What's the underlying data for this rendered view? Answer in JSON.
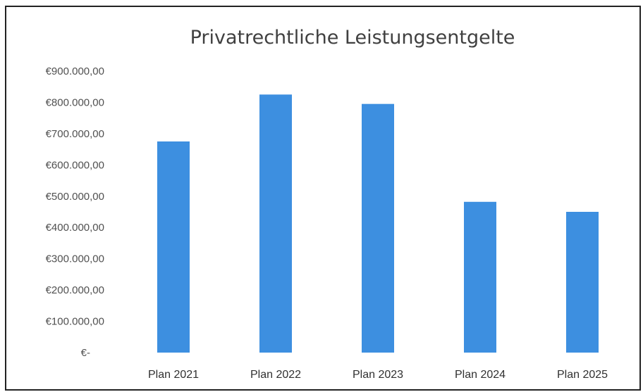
{
  "chart_data": {
    "type": "bar",
    "title": "Privatrechtliche Leistungsentgelte",
    "categories": [
      "Plan 2021",
      "Plan 2022",
      "Plan 2023",
      "Plan 2024",
      "Plan 2025"
    ],
    "values": [
      675000,
      825000,
      795000,
      482000,
      450000
    ],
    "ylim": [
      0,
      900000
    ],
    "yticks": [
      0,
      100000,
      200000,
      300000,
      400000,
      500000,
      600000,
      700000,
      800000,
      900000
    ],
    "ytick_labels": [
      "€-",
      "€100.000,00",
      "€200.000,00",
      "€300.000,00",
      "€400.000,00",
      "€500.000,00",
      "€600.000,00",
      "€700.000,00",
      "€800.000,00",
      "€900.000,00"
    ],
    "xlabel": "",
    "ylabel": "",
    "grid": false,
    "legend": "none",
    "bar_color": "#3d8fe0",
    "frame_color": "#222222"
  }
}
